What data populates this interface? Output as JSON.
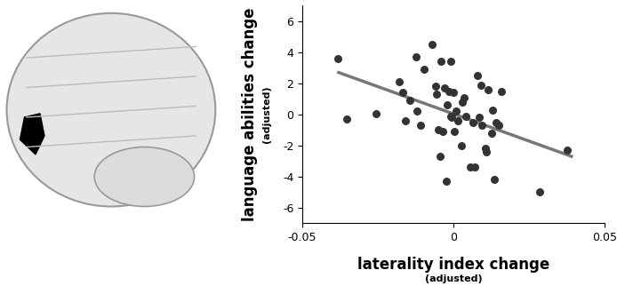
{
  "chart_data": {
    "type": "scatter",
    "x_label": "laterality index change",
    "x_label_note": "(adjusted)",
    "y_label": "language abilities change",
    "y_label_note": "(adjusted)",
    "x": [
      -0.0383,
      -0.0353,
      -0.0255,
      -0.018,
      -0.0168,
      -0.0158,
      -0.0145,
      -0.0125,
      -0.012,
      -0.011,
      -0.0098,
      -0.007,
      -0.006,
      -0.0055,
      -0.005,
      -0.0045,
      -0.004,
      -0.0035,
      -0.003,
      -0.0025,
      -0.002,
      -0.0015,
      -0.001,
      -0.0008,
      -0.0005,
      0.0,
      0.0003,
      0.0008,
      0.0015,
      0.0025,
      0.003,
      0.0035,
      0.004,
      0.0055,
      0.0065,
      0.007,
      0.008,
      0.0085,
      0.009,
      0.0095,
      0.0105,
      0.011,
      0.0115,
      0.0125,
      0.013,
      0.0135,
      0.014,
      0.015,
      0.016,
      0.0285,
      0.0375
    ],
    "values": [
      3.6,
      -0.3,
      0.05,
      2.1,
      1.4,
      -0.4,
      0.9,
      3.7,
      0.2,
      -0.7,
      2.9,
      4.5,
      1.8,
      1.3,
      -1.0,
      -2.7,
      3.4,
      -1.1,
      1.7,
      -4.3,
      0.6,
      1.5,
      3.4,
      -0.1,
      -0.2,
      1.4,
      -1.1,
      0.2,
      -0.4,
      -2.0,
      0.8,
      1.1,
      -0.1,
      -3.4,
      -0.5,
      -3.4,
      2.5,
      -0.2,
      1.9,
      -0.7,
      -2.2,
      -2.4,
      1.6,
      -1.2,
      0.3,
      -4.2,
      -0.5,
      -0.7,
      1.5,
      -5.0,
      -2.3
    ],
    "color": "#333333",
    "trend_line": {
      "x": [
        -0.038,
        0.039
      ],
      "y": [
        2.7,
        -2.7
      ],
      "color": "#777777"
    },
    "xlim": [
      -0.05,
      0.05
    ],
    "xticks": [
      -0.05,
      0,
      0.05
    ],
    "ylim": [
      -7,
      7
    ],
    "yticks": [
      -6,
      -4,
      -2,
      0,
      2,
      4,
      6
    ],
    "grid": false
  }
}
